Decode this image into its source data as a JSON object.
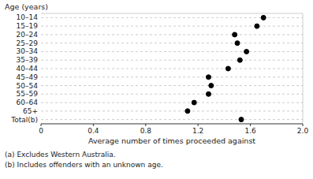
{
  "chart_data": {
    "type": "dot",
    "orientation": "horizontal",
    "xlabel": "Average number of times proceeded against",
    "ylabel": "Age (years)",
    "categories": [
      "10–14",
      "15–19",
      "20–24",
      "25–29",
      "30–34",
      "35–39",
      "40–44",
      "45–49",
      "50–54",
      "55–59",
      "60–64",
      "65+",
      "Total(b)"
    ],
    "values": [
      1.7,
      1.65,
      1.48,
      1.5,
      1.57,
      1.52,
      1.43,
      1.28,
      1.3,
      1.28,
      1.17,
      1.12,
      1.53
    ],
    "color": "#000000",
    "marker": "circle",
    "xlim": [
      0,
      2.0
    ],
    "xticks": [
      0,
      0.4,
      0.8,
      1.2,
      1.6,
      {
        "value": 2.0,
        "label": "2.0"
      }
    ],
    "grid": true,
    "annotations": [
      "(a) Excludes Western Australia.",
      "(b) Includes offenders with an unknown age."
    ]
  }
}
